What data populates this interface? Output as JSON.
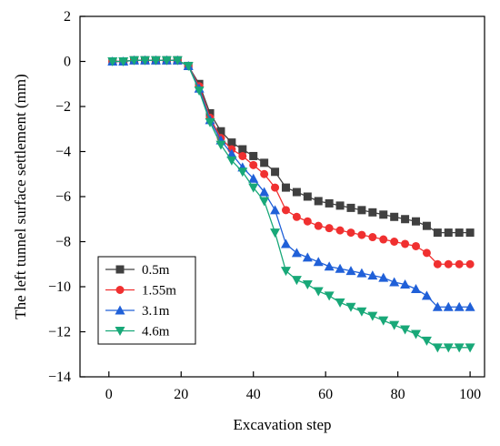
{
  "chart_data": {
    "type": "line",
    "title": "",
    "xlabel": "Excavation step",
    "ylabel": "The left tunnel surface settlement (mm)",
    "xlim": [
      -8,
      104
    ],
    "ylim": [
      -14,
      2
    ],
    "xticks": [
      0,
      20,
      40,
      60,
      80,
      100
    ],
    "yticks": [
      2,
      0,
      -2,
      -4,
      -6,
      -8,
      -10,
      -12,
      -14
    ],
    "grid": false,
    "legend_position": "bottom-left",
    "x": [
      1,
      4,
      7,
      10,
      13,
      16,
      19,
      22,
      25,
      28,
      31,
      34,
      37,
      40,
      43,
      46,
      49,
      52,
      55,
      58,
      61,
      64,
      67,
      70,
      73,
      76,
      79,
      82,
      85,
      88,
      91,
      94,
      97,
      100
    ],
    "series": [
      {
        "name": "0.5m",
        "color": "#404040",
        "marker": "square",
        "values": [
          0,
          0,
          0.05,
          0.05,
          0.05,
          0.05,
          0.05,
          -0.2,
          -1.0,
          -2.3,
          -3.1,
          -3.6,
          -3.9,
          -4.2,
          -4.5,
          -4.9,
          -5.6,
          -5.8,
          -6.0,
          -6.2,
          -6.3,
          -6.4,
          -6.5,
          -6.6,
          -6.7,
          -6.8,
          -6.9,
          -7.0,
          -7.1,
          -7.3,
          -7.6,
          -7.6,
          -7.6,
          -7.6
        ]
      },
      {
        "name": "1.55m",
        "color": "#f03030",
        "marker": "circle",
        "values": [
          0,
          0,
          0.05,
          0.05,
          0.05,
          0.05,
          0.05,
          -0.2,
          -1.1,
          -2.5,
          -3.4,
          -3.9,
          -4.2,
          -4.6,
          -5.0,
          -5.6,
          -6.6,
          -6.9,
          -7.1,
          -7.3,
          -7.4,
          -7.5,
          -7.6,
          -7.7,
          -7.8,
          -7.9,
          -8.0,
          -8.1,
          -8.2,
          -8.5,
          -9.0,
          -9.0,
          -9.0,
          -9.0
        ]
      },
      {
        "name": "3.1m",
        "color": "#2060d8",
        "marker": "triangle-up",
        "values": [
          0,
          0,
          0.05,
          0.05,
          0.05,
          0.05,
          0.05,
          -0.2,
          -1.2,
          -2.6,
          -3.5,
          -4.1,
          -4.7,
          -5.2,
          -5.8,
          -6.6,
          -8.1,
          -8.5,
          -8.7,
          -8.9,
          -9.1,
          -9.2,
          -9.3,
          -9.4,
          -9.5,
          -9.6,
          -9.8,
          -9.9,
          -10.1,
          -10.4,
          -10.9,
          -10.9,
          -10.9,
          -10.9
        ]
      },
      {
        "name": "4.6m",
        "color": "#18a878",
        "marker": "triangle-down",
        "values": [
          0,
          0,
          0.05,
          0.05,
          0.05,
          0.05,
          0.05,
          -0.2,
          -1.3,
          -2.7,
          -3.7,
          -4.4,
          -4.9,
          -5.6,
          -6.2,
          -7.6,
          -9.3,
          -9.7,
          -9.9,
          -10.2,
          -10.4,
          -10.7,
          -10.9,
          -11.1,
          -11.3,
          -11.5,
          -11.7,
          -11.9,
          -12.1,
          -12.4,
          -12.7,
          -12.7,
          -12.7,
          -12.7
        ]
      }
    ]
  }
}
